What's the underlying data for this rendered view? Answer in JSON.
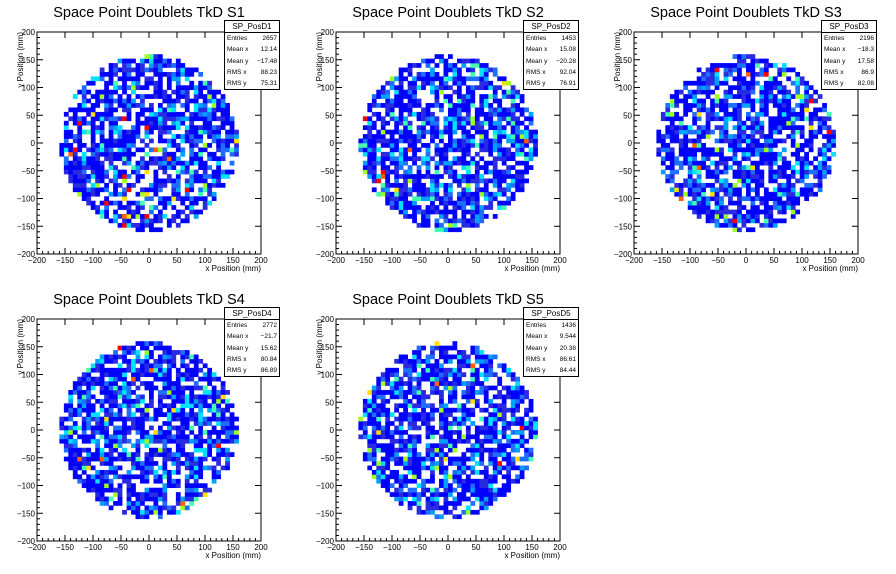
{
  "chart_data": [
    {
      "type": "heatmap",
      "title": "Space Point Doublets TkD S1",
      "xlabel": "x Position (mm)",
      "ylabel": "y Position (mm)",
      "xlim": [
        -200,
        200
      ],
      "ylim": [
        -200,
        200
      ],
      "xticks": [
        -200,
        -150,
        -100,
        -50,
        0,
        50,
        100,
        150,
        200
      ],
      "yticks": [
        -200,
        -150,
        -100,
        -50,
        0,
        50,
        100,
        150,
        200
      ],
      "acceptance_radius": 160,
      "stats": {
        "name": "SP_PosD1",
        "rows": [
          {
            "label": "Entries",
            "value": "2657"
          },
          {
            "label": "Mean x",
            "value": "12.14"
          },
          {
            "label": "Mean y",
            "value": "−17.48"
          },
          {
            "label": "RMS x",
            "value": "88.23"
          },
          {
            "label": "RMS y",
            "value": "75.31"
          }
        ]
      }
    },
    {
      "type": "heatmap",
      "title": "Space Point Doublets TkD S2",
      "xlabel": "x Position (mm)",
      "ylabel": "y Position (mm)",
      "xlim": [
        -200,
        200
      ],
      "ylim": [
        -200,
        200
      ],
      "xticks": [
        -200,
        -150,
        -100,
        -50,
        0,
        50,
        100,
        150,
        200
      ],
      "yticks": [
        -200,
        -150,
        -100,
        -50,
        0,
        50,
        100,
        150,
        200
      ],
      "acceptance_radius": 160,
      "stats": {
        "name": "SP_PosD2",
        "rows": [
          {
            "label": "Entries",
            "value": "1453"
          },
          {
            "label": "Mean x",
            "value": "15.08"
          },
          {
            "label": "Mean y",
            "value": "−20.28"
          },
          {
            "label": "RMS x",
            "value": "92.04"
          },
          {
            "label": "RMS y",
            "value": "76.91"
          }
        ]
      }
    },
    {
      "type": "heatmap",
      "title": "Space Point Doublets TkD S3",
      "xlabel": "x Position (mm)",
      "ylabel": "y Position (mm)",
      "xlim": [
        -200,
        200
      ],
      "ylim": [
        -200,
        200
      ],
      "xticks": [
        -200,
        -150,
        -100,
        -50,
        0,
        50,
        100,
        150,
        200
      ],
      "yticks": [
        -200,
        -150,
        -100,
        -50,
        0,
        50,
        100,
        150,
        200
      ],
      "acceptance_radius": 160,
      "stats": {
        "name": "SP_PosD3",
        "rows": [
          {
            "label": "Entries",
            "value": "2196"
          },
          {
            "label": "Mean x",
            "value": "−18.3"
          },
          {
            "label": "Mean y",
            "value": "17.58"
          },
          {
            "label": "RMS x",
            "value": "86.9"
          },
          {
            "label": "RMS y",
            "value": "82.08"
          }
        ]
      }
    },
    {
      "type": "heatmap",
      "title": "Space Point Doublets TkD S4",
      "xlabel": "x Position (mm)",
      "ylabel": "y Position (mm)",
      "xlim": [
        -200,
        200
      ],
      "ylim": [
        -200,
        200
      ],
      "xticks": [
        -200,
        -150,
        -100,
        -50,
        0,
        50,
        100,
        150,
        200
      ],
      "yticks": [
        -200,
        -150,
        -100,
        -50,
        0,
        50,
        100,
        150,
        200
      ],
      "acceptance_radius": 160,
      "stats": {
        "name": "SP_PosD4",
        "rows": [
          {
            "label": "Entries",
            "value": "2772"
          },
          {
            "label": "Mean x",
            "value": "−21.7"
          },
          {
            "label": "Mean y",
            "value": "15.62"
          },
          {
            "label": "RMS x",
            "value": "80.84"
          },
          {
            "label": "RMS y",
            "value": "86.89"
          }
        ]
      }
    },
    {
      "type": "heatmap",
      "title": "Space Point Doublets TkD S5",
      "xlabel": "x Position (mm)",
      "ylabel": "y Position (mm)",
      "xlim": [
        -200,
        200
      ],
      "ylim": [
        -200,
        200
      ],
      "xticks": [
        -200,
        -150,
        -100,
        -50,
        0,
        50,
        100,
        150,
        200
      ],
      "yticks": [
        -200,
        -150,
        -100,
        -50,
        0,
        50,
        100,
        150,
        200
      ],
      "acceptance_radius": 160,
      "stats": {
        "name": "SP_PosD5",
        "rows": [
          {
            "label": "Entries",
            "value": "1436"
          },
          {
            "label": "Mean x",
            "value": "9.544"
          },
          {
            "label": "Mean y",
            "value": "20.38"
          },
          {
            "label": "RMS x",
            "value": "86.61"
          },
          {
            "label": "RMS y",
            "value": "84.44"
          }
        ]
      }
    }
  ],
  "colors": {
    "palette": [
      "#0000ff",
      "#2a2ae0",
      "#1e6eff",
      "#00a0ff",
      "#00e0ff",
      "#40ffb0",
      "#a0ff20",
      "#ffe000",
      "#ff6000",
      "#ff0000"
    ],
    "frame": "#000000"
  }
}
